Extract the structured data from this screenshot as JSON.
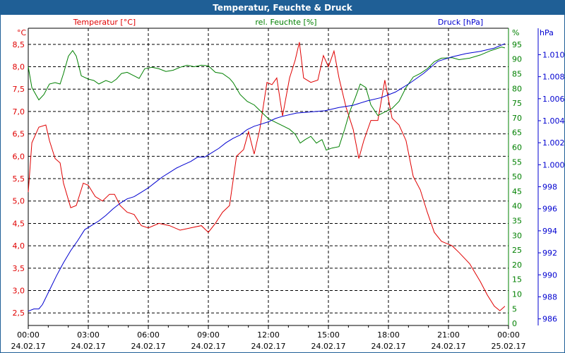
{
  "window": {
    "title": "Temperatur, Feuchte & Druck"
  },
  "chart_data": {
    "type": "line",
    "title": "Temperatur, Feuchte & Druck",
    "xlabel": "",
    "x_unit": "hours since 24.02.17 00:00",
    "xlim": [
      0,
      24
    ],
    "x_ticks": [
      {
        "v": 0,
        "time": "00:00",
        "date": "24.02.17"
      },
      {
        "v": 3,
        "time": "03:00",
        "date": "24.02.17"
      },
      {
        "v": 6,
        "time": "06:00",
        "date": "24.02.17"
      },
      {
        "v": 9,
        "time": "09:00",
        "date": "24.02.17"
      },
      {
        "v": 12,
        "time": "12:00",
        "date": "24.02.17"
      },
      {
        "v": 15,
        "time": "15:00",
        "date": "24.02.17"
      },
      {
        "v": 18,
        "time": "18:00",
        "date": "24.02.17"
      },
      {
        "v": 21,
        "time": "21:00",
        "date": "24.02.17"
      },
      {
        "v": 24,
        "time": "00:00",
        "date": "25.02.17"
      }
    ],
    "grid": true,
    "axes": {
      "temp": {
        "unit": "°C",
        "color": "#e00000",
        "ylim": [
          2.22,
          8.86
        ],
        "ticks": [
          {
            "v": 2.5,
            "l": "2,5"
          },
          {
            "v": 3.0,
            "l": "3,0"
          },
          {
            "v": 3.5,
            "l": "3,5"
          },
          {
            "v": 4.0,
            "l": "4,0"
          },
          {
            "v": 4.5,
            "l": "4,5"
          },
          {
            "v": 5.0,
            "l": "5,0"
          },
          {
            "v": 5.5,
            "l": "5,5"
          },
          {
            "v": 6.0,
            "l": "6,0"
          },
          {
            "v": 6.5,
            "l": "6,5"
          },
          {
            "v": 7.0,
            "l": "7,0"
          },
          {
            "v": 7.5,
            "l": "7,5"
          },
          {
            "v": 8.0,
            "l": "8,0"
          },
          {
            "v": 8.5,
            "l": "8,5"
          }
        ]
      },
      "hum": {
        "unit": "%",
        "color": "#008000",
        "ylim": [
          -0.7,
          100.5
        ],
        "ticks": [
          {
            "v": 0,
            "l": "0"
          },
          {
            "v": 5,
            "l": "5"
          },
          {
            "v": 10,
            "l": "10"
          },
          {
            "v": 15,
            "l": "15"
          },
          {
            "v": 20,
            "l": "20"
          },
          {
            "v": 25,
            "l": "25"
          },
          {
            "v": 30,
            "l": "30"
          },
          {
            "v": 35,
            "l": "35"
          },
          {
            "v": 40,
            "l": "40"
          },
          {
            "v": 45,
            "l": "45"
          },
          {
            "v": 50,
            "l": "50"
          },
          {
            "v": 55,
            "l": "55"
          },
          {
            "v": 60,
            "l": "60"
          },
          {
            "v": 65,
            "l": "65"
          },
          {
            "v": 70,
            "l": "70"
          },
          {
            "v": 75,
            "l": "75"
          },
          {
            "v": 80,
            "l": "80"
          },
          {
            "v": 85,
            "l": "85"
          },
          {
            "v": 90,
            "l": "90"
          },
          {
            "v": 95,
            "l": "95"
          }
        ]
      },
      "pres": {
        "unit": "hPa",
        "color": "#0000d0",
        "ylim": [
          985.4,
          1012.4
        ],
        "ticks": [
          {
            "v": 986,
            "l": "986"
          },
          {
            "v": 988,
            "l": "988"
          },
          {
            "v": 990,
            "l": "990"
          },
          {
            "v": 992,
            "l": "992"
          },
          {
            "v": 994,
            "l": "994"
          },
          {
            "v": 996,
            "l": "996"
          },
          {
            "v": 998,
            "l": "998"
          },
          {
            "v": 1000,
            "l": "1.000"
          },
          {
            "v": 1002,
            "l": "1.002"
          },
          {
            "v": 1004,
            "l": "1.004"
          },
          {
            "v": 1006,
            "l": "1.006"
          },
          {
            "v": 1008,
            "l": "1.008"
          },
          {
            "v": 1010,
            "l": "1.010"
          }
        ]
      }
    },
    "legend": [
      "Temperatur [°C]",
      "rel. Feuchte [%]",
      "Druck [hPa]"
    ],
    "series": [
      {
        "name": "Temperatur [°C]",
        "axis": "temp",
        "color": "#e00000",
        "x": [
          0,
          0.18,
          0.53,
          0.88,
          1.06,
          1.34,
          1.59,
          1.76,
          2.12,
          2.4,
          2.75,
          3.0,
          3.35,
          3.71,
          4.06,
          4.31,
          4.59,
          4.94,
          5.29,
          5.65,
          6.0,
          6.53,
          7.06,
          7.59,
          8.12,
          8.65,
          9.0,
          9.35,
          9.71,
          10.06,
          10.41,
          10.76,
          11.01,
          11.29,
          11.57,
          11.93,
          12.18,
          12.42,
          12.71,
          13.06,
          13.34,
          13.55,
          13.76,
          14.12,
          14.47,
          14.75,
          15.0,
          15.28,
          15.53,
          15.88,
          16.24,
          16.52,
          16.77,
          17.12,
          17.47,
          17.82,
          18.18,
          18.53,
          18.88,
          19.24,
          19.59,
          19.94,
          20.29,
          20.65,
          21.18,
          21.53,
          22.06,
          22.59,
          22.94,
          23.29,
          23.57,
          23.82
        ],
        "y": [
          5.2,
          6.3,
          6.65,
          6.7,
          6.35,
          5.95,
          5.85,
          5.4,
          4.85,
          4.9,
          5.4,
          5.35,
          5.1,
          5.0,
          5.15,
          5.15,
          4.9,
          4.75,
          4.7,
          4.45,
          4.4,
          4.5,
          4.45,
          4.35,
          4.4,
          4.45,
          4.3,
          4.5,
          4.75,
          4.9,
          6.0,
          6.15,
          6.55,
          6.05,
          6.6,
          7.65,
          7.6,
          7.75,
          6.9,
          7.75,
          8.15,
          8.55,
          7.75,
          7.65,
          7.7,
          8.25,
          8.0,
          8.35,
          7.75,
          7.1,
          6.6,
          5.95,
          6.35,
          6.8,
          6.8,
          7.7,
          6.85,
          6.7,
          6.35,
          5.55,
          5.25,
          4.75,
          4.3,
          4.1,
          4.0,
          3.85,
          3.6,
          3.2,
          2.9,
          2.65,
          2.55,
          2.65
        ]
      },
      {
        "name": "rel. Feuchte [%]",
        "axis": "hum",
        "color": "#008000",
        "x": [
          0,
          0.18,
          0.53,
          0.78,
          1.06,
          1.34,
          1.59,
          1.76,
          2.01,
          2.22,
          2.4,
          2.65,
          3.0,
          3.28,
          3.53,
          3.88,
          4.16,
          4.41,
          4.66,
          4.94,
          5.29,
          5.54,
          5.82,
          6.18,
          6.53,
          6.88,
          7.24,
          7.59,
          7.94,
          8.29,
          8.65,
          9.0,
          9.35,
          9.71,
          10.06,
          10.24,
          10.59,
          10.94,
          11.29,
          11.65,
          12.0,
          12.35,
          12.71,
          13.06,
          13.34,
          13.59,
          13.84,
          14.12,
          14.4,
          14.68,
          14.89,
          15.18,
          15.53,
          15.81,
          16.06,
          16.34,
          16.59,
          16.87,
          17.12,
          17.47,
          17.82,
          18.18,
          18.53,
          18.88,
          19.24,
          19.59,
          19.94,
          20.29,
          20.65,
          21.18,
          21.53,
          22.06,
          22.59,
          23.12,
          23.65,
          23.82
        ],
        "y": [
          87.4,
          80.3,
          76.1,
          77.9,
          81.5,
          82.0,
          81.5,
          85.1,
          91.0,
          92.9,
          91.0,
          84.3,
          83.2,
          82.7,
          81.5,
          82.7,
          82.0,
          83.2,
          85.1,
          85.5,
          84.3,
          83.4,
          86.7,
          87.2,
          86.7,
          85.8,
          86.2,
          87.2,
          87.9,
          87.4,
          87.9,
          87.7,
          85.5,
          85.1,
          83.4,
          82.0,
          77.9,
          75.6,
          74.4,
          72.0,
          69.7,
          68.5,
          67.3,
          66.1,
          64.4,
          61.4,
          62.6,
          63.7,
          61.4,
          62.6,
          59.0,
          59.7,
          60.2,
          66.1,
          72.0,
          76.8,
          81.5,
          80.3,
          74.4,
          70.8,
          72.0,
          73.2,
          75.6,
          80.3,
          83.9,
          85.1,
          86.7,
          89.1,
          90.3,
          90.5,
          89.8,
          90.3,
          91.4,
          92.9,
          94.1,
          93.8
        ]
      },
      {
        "name": "Druck [hPa]",
        "axis": "pres",
        "color": "#0000d0",
        "x": [
          0,
          0.28,
          0.53,
          0.71,
          1.06,
          1.41,
          1.76,
          2.12,
          2.47,
          2.82,
          3.18,
          3.53,
          3.88,
          4.24,
          4.59,
          4.94,
          5.29,
          5.65,
          6.0,
          6.35,
          6.71,
          7.06,
          7.41,
          7.76,
          8.12,
          8.47,
          8.82,
          9.18,
          9.53,
          9.88,
          10.24,
          10.59,
          10.94,
          11.29,
          11.65,
          12.0,
          12.35,
          12.71,
          13.41,
          14.12,
          14.82,
          15.53,
          16.24,
          16.94,
          17.65,
          18.35,
          19.06,
          19.76,
          20.47,
          21.18,
          21.88,
          22.59,
          23.29,
          23.82
        ],
        "y": [
          986.7,
          986.9,
          986.9,
          987.3,
          988.6,
          989.9,
          991.1,
          992.2,
          993.1,
          994.1,
          994.5,
          994.9,
          995.4,
          996.0,
          996.5,
          996.9,
          997.1,
          997.5,
          997.9,
          998.4,
          998.9,
          999.3,
          999.7,
          1000.0,
          1000.3,
          1000.7,
          1000.7,
          1001.1,
          1001.5,
          1002.0,
          1002.4,
          1002.7,
          1003.2,
          1003.5,
          1003.7,
          1003.9,
          1004.2,
          1004.4,
          1004.7,
          1004.8,
          1004.9,
          1005.2,
          1005.4,
          1005.8,
          1006.1,
          1006.6,
          1007.4,
          1008.3,
          1009.4,
          1009.8,
          1010.1,
          1010.3,
          1010.6,
          1011.0
        ]
      }
    ]
  }
}
